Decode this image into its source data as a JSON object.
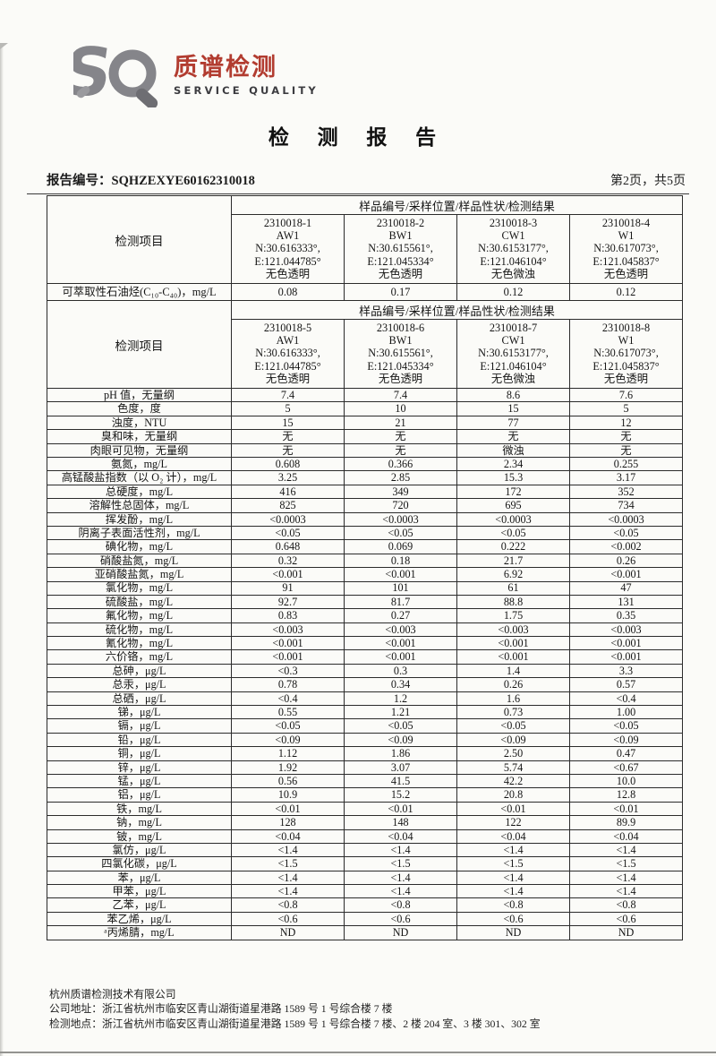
{
  "logo": {
    "brand": "质谱检测",
    "brand_color": "#b23c30",
    "tagline": "SERVICE QUALITY",
    "mark_gray": "#85858a",
    "mark_dark": "#6e6e73"
  },
  "title": "检 测 报 告",
  "meta": {
    "report_no_label": "报告编号：",
    "report_no": "SQHZEXYE60162310018",
    "page_info": "第2页，共5页"
  },
  "table": {
    "sample_header": "样品编号/采样位置/样品性状/检测结果",
    "item_header": "检测项目",
    "blocks": [
      {
        "samples": [
          [
            "2310018-1",
            "AW1",
            "N:30.616333°,",
            "E:121.044785°",
            "无色透明"
          ],
          [
            "2310018-2",
            "BW1",
            "N:30.615561°,",
            "E:121.045334°",
            "无色透明"
          ],
          [
            "2310018-3",
            "CW1",
            "N:30.6153177°,",
            "E:121.046104°",
            "无色微浊"
          ],
          [
            "2310018-4",
            "W1",
            "N:30.617073°,",
            "E:121.045837°",
            "无色透明"
          ]
        ],
        "rows": [
          {
            "label": "可萃取性石油烃(C₁₀-C₄₀)，mg/L",
            "values": [
              "0.08",
              "0.17",
              "0.12",
              "0.12"
            ]
          }
        ]
      },
      {
        "samples": [
          [
            "2310018-5",
            "AW1",
            "N:30.616333°,",
            "E:121.044785°",
            "无色透明"
          ],
          [
            "2310018-6",
            "BW1",
            "N:30.615561°,",
            "E:121.045334°",
            "无色透明"
          ],
          [
            "2310018-7",
            "CW1",
            "N:30.6153177°,",
            "E:121.046104°",
            "无色微浊"
          ],
          [
            "2310018-8",
            "W1",
            "N:30.617073°,",
            "E:121.045837°",
            "无色透明"
          ]
        ],
        "rows": [
          {
            "label": "pH 值，无量纲",
            "values": [
              "7.4",
              "7.4",
              "8.6",
              "7.6"
            ]
          },
          {
            "label": "色度，度",
            "values": [
              "5",
              "10",
              "15",
              "5"
            ]
          },
          {
            "label": "浊度，NTU",
            "values": [
              "15",
              "21",
              "77",
              "12"
            ]
          },
          {
            "label": "臭和味，无量纲",
            "values": [
              "无",
              "无",
              "无",
              "无"
            ]
          },
          {
            "label": "肉眼可见物，无量纲",
            "values": [
              "无",
              "无",
              "微浊",
              "无"
            ]
          },
          {
            "label": "氨氮，mg/L",
            "values": [
              "0.608",
              "0.366",
              "2.34",
              "0.255"
            ]
          },
          {
            "label": "高锰酸盐指数（以 O₂ 计），mg/L",
            "values": [
              "3.25",
              "2.85",
              "15.3",
              "3.17"
            ]
          },
          {
            "label": "总硬度，mg/L",
            "values": [
              "416",
              "349",
              "172",
              "352"
            ]
          },
          {
            "label": "溶解性总固体，mg/L",
            "values": [
              "825",
              "720",
              "695",
              "734"
            ]
          },
          {
            "label": "挥发酚，mg/L",
            "values": [
              "<0.0003",
              "<0.0003",
              "<0.0003",
              "<0.0003"
            ]
          },
          {
            "label": "阴离子表面活性剂，mg/L",
            "values": [
              "<0.05",
              "<0.05",
              "<0.05",
              "<0.05"
            ]
          },
          {
            "label": "碘化物，mg/L",
            "values": [
              "0.648",
              "0.069",
              "0.222",
              "<0.002"
            ]
          },
          {
            "label": "硝酸盐氮，mg/L",
            "values": [
              "0.32",
              "0.18",
              "21.7",
              "0.26"
            ]
          },
          {
            "label": "亚硝酸盐氮，mg/L",
            "values": [
              "<0.001",
              "<0.001",
              "6.92",
              "<0.001"
            ]
          },
          {
            "label": "氯化物，mg/L",
            "values": [
              "91",
              "101",
              "61",
              "47"
            ]
          },
          {
            "label": "硫酸盐，mg/L",
            "values": [
              "92.7",
              "81.7",
              "88.8",
              "131"
            ]
          },
          {
            "label": "氟化物，mg/L",
            "values": [
              "0.83",
              "0.27",
              "1.75",
              "0.35"
            ]
          },
          {
            "label": "硫化物，mg/L",
            "values": [
              "<0.003",
              "<0.003",
              "<0.003",
              "<0.003"
            ]
          },
          {
            "label": "氰化物，mg/L",
            "values": [
              "<0.001",
              "<0.001",
              "<0.001",
              "<0.001"
            ]
          },
          {
            "label": "六价铬，mg/L",
            "values": [
              "<0.001",
              "<0.001",
              "<0.001",
              "<0.001"
            ]
          },
          {
            "label": "总砷，μg/L",
            "values": [
              "<0.3",
              "0.3",
              "1.4",
              "3.3"
            ]
          },
          {
            "label": "总汞，μg/L",
            "values": [
              "0.78",
              "0.34",
              "0.26",
              "0.57"
            ]
          },
          {
            "label": "总硒，μg/L",
            "values": [
              "<0.4",
              "1.2",
              "1.6",
              "<0.4"
            ]
          },
          {
            "label": "锑，μg/L",
            "values": [
              "0.55",
              "1.21",
              "0.73",
              "1.00"
            ]
          },
          {
            "label": "镉，μg/L",
            "values": [
              "<0.05",
              "<0.05",
              "<0.05",
              "<0.05"
            ]
          },
          {
            "label": "铅，μg/L",
            "values": [
              "<0.09",
              "<0.09",
              "<0.09",
              "<0.09"
            ]
          },
          {
            "label": "铜，μg/L",
            "values": [
              "1.12",
              "1.86",
              "2.50",
              "0.47"
            ]
          },
          {
            "label": "锌，μg/L",
            "values": [
              "1.92",
              "3.07",
              "5.74",
              "<0.67"
            ]
          },
          {
            "label": "锰，μg/L",
            "values": [
              "0.56",
              "41.5",
              "42.2",
              "10.0"
            ]
          },
          {
            "label": "铝，μg/L",
            "values": [
              "10.9",
              "15.2",
              "20.8",
              "12.8"
            ]
          },
          {
            "label": "铁，mg/L",
            "values": [
              "<0.01",
              "<0.01",
              "<0.01",
              "<0.01"
            ]
          },
          {
            "label": "钠，mg/L",
            "values": [
              "128",
              "148",
              "122",
              "89.9"
            ]
          },
          {
            "label": "铍，mg/L",
            "values": [
              "<0.04",
              "<0.04",
              "<0.04",
              "<0.04"
            ]
          },
          {
            "label": "氯仿，μg/L",
            "values": [
              "<1.4",
              "<1.4",
              "<1.4",
              "<1.4"
            ]
          },
          {
            "label": "四氯化碳，μg/L",
            "values": [
              "<1.5",
              "<1.5",
              "<1.5",
              "<1.5"
            ]
          },
          {
            "label": "苯，μg/L",
            "values": [
              "<1.4",
              "<1.4",
              "<1.4",
              "<1.4"
            ]
          },
          {
            "label": "甲苯，μg/L",
            "values": [
              "<1.4",
              "<1.4",
              "<1.4",
              "<1.4"
            ]
          },
          {
            "label": "乙苯，μg/L",
            "values": [
              "<0.8",
              "<0.8",
              "<0.8",
              "<0.8"
            ]
          },
          {
            "label": "苯乙烯，μg/L",
            "values": [
              "<0.6",
              "<0.6",
              "<0.6",
              "<0.6"
            ]
          },
          {
            "label": "ᵃ丙烯腈，mg/L",
            "values": [
              "ND",
              "ND",
              "ND",
              "ND"
            ]
          }
        ]
      }
    ]
  },
  "footer": {
    "company": "杭州质谱检测技术有限公司",
    "address": "公司地址：浙江省杭州市临安区青山湖街道星港路 1589 号 1 号综合楼 7 楼",
    "location": "检测地点：浙江省杭州市临安区青山湖街道星港路 1589 号 1 号综合楼 7 楼、2 楼 204 室、3 楼 301、302 室"
  }
}
